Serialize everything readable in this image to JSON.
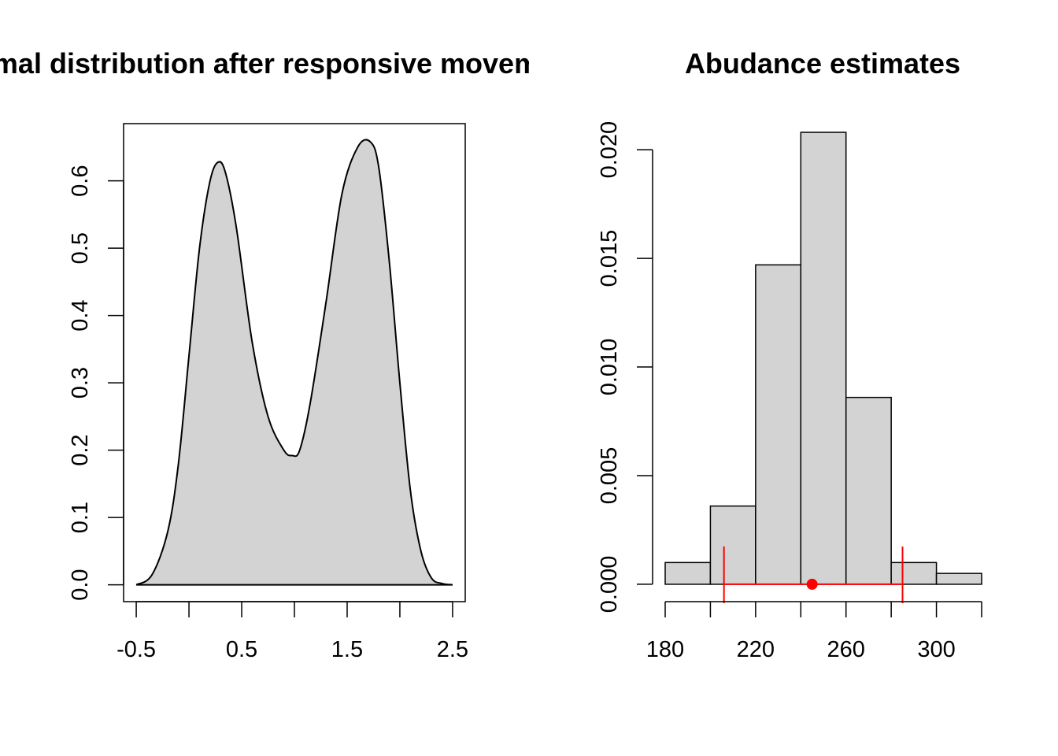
{
  "colors": {
    "background": "#ffffff",
    "fill": "#d3d3d3",
    "stroke": "#000000",
    "interval": "#ff0000"
  },
  "chart_data": [
    {
      "type": "area",
      "title": "Animal distribution after responsive movement",
      "xlabel": "",
      "ylabel": "",
      "xlim": [
        -0.62,
        2.62
      ],
      "ylim": [
        -0.025,
        0.685
      ],
      "x_ticks": [
        -0.5,
        0,
        0.5,
        1,
        1.5,
        2,
        2.5
      ],
      "x_tick_labels": [
        "-0.5",
        "",
        "0.5",
        "",
        "1.5",
        "",
        "2.5"
      ],
      "y_ticks": [
        0,
        0.1,
        0.2,
        0.3,
        0.4,
        0.5,
        0.6
      ],
      "y_tick_labels": [
        "0.0",
        "0.1",
        "0.2",
        "0.3",
        "0.4",
        "0.5",
        "0.6"
      ],
      "box": true,
      "grid": false,
      "series": [
        {
          "x": [
            -0.5,
            -0.35,
            -0.2,
            -0.1,
            0.0,
            0.1,
            0.2,
            0.28,
            0.35,
            0.45,
            0.6,
            0.75,
            0.9,
            0.98,
            1.05,
            1.15,
            1.3,
            1.45,
            1.6,
            1.72,
            1.8,
            1.9,
            2.0,
            2.1,
            2.2,
            2.3,
            2.4,
            2.5
          ],
          "y": [
            0.0,
            0.015,
            0.08,
            0.18,
            0.34,
            0.5,
            0.6,
            0.628,
            0.61,
            0.53,
            0.36,
            0.25,
            0.2,
            0.192,
            0.2,
            0.27,
            0.42,
            0.58,
            0.65,
            0.658,
            0.62,
            0.48,
            0.3,
            0.14,
            0.05,
            0.01,
            0.002,
            0.0
          ]
        }
      ]
    },
    {
      "type": "bar",
      "title": "Abudance estimates",
      "xlabel": "",
      "ylabel": "",
      "xlim": [
        180,
        320
      ],
      "ylim": [
        -0.0008,
        0.0212
      ],
      "x_ticks": [
        180,
        200,
        220,
        240,
        260,
        280,
        300,
        320
      ],
      "x_tick_labels": [
        "180",
        "",
        "220",
        "",
        "260",
        "",
        "300",
        ""
      ],
      "y_ticks": [
        0,
        0.005,
        0.01,
        0.015,
        0.02
      ],
      "y_tick_labels": [
        "0.000",
        "0.005",
        "0.010",
        "0.015",
        "0.020"
      ],
      "box": false,
      "grid": false,
      "bins": [
        {
          "start": 180,
          "end": 200,
          "value": 0.001
        },
        {
          "start": 200,
          "end": 220,
          "value": 0.0036
        },
        {
          "start": 220,
          "end": 240,
          "value": 0.0147
        },
        {
          "start": 240,
          "end": 260,
          "value": 0.0208
        },
        {
          "start": 260,
          "end": 280,
          "value": 0.0086
        },
        {
          "start": 280,
          "end": 300,
          "value": 0.001
        },
        {
          "start": 300,
          "end": 320,
          "value": 0.0005
        }
      ],
      "estimate": {
        "point": 245,
        "lower": 206,
        "upper": 285
      }
    }
  ]
}
